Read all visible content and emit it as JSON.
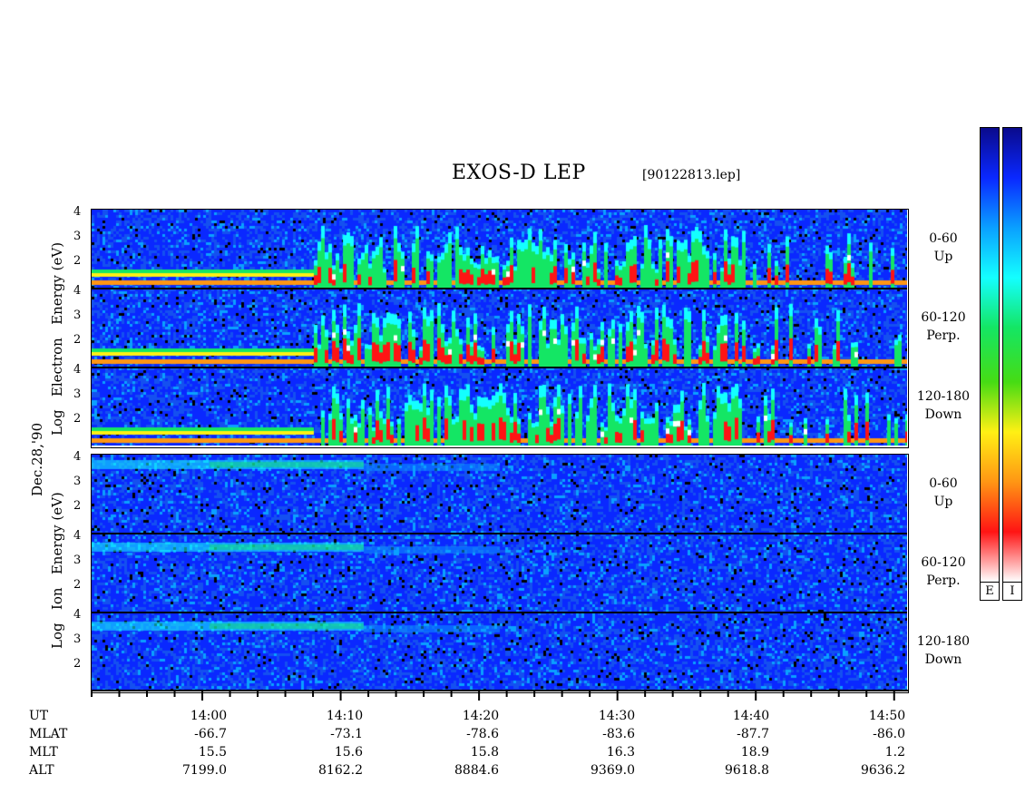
{
  "title": "EXOS-D LEP",
  "file": "[90122813.lep]",
  "date_label": "Dec.28,'90",
  "electron_axis": [
    "Log",
    "Electron",
    "Energy",
    "(eV)"
  ],
  "ion_axis": [
    "Log",
    "Ion",
    "Energy",
    "(eV)"
  ],
  "panels": [
    {
      "name": "electron-up",
      "pitch": "0-60",
      "dir": "Up",
      "species": "E",
      "fill": 1.0
    },
    {
      "name": "electron-perp",
      "pitch": "60-120",
      "dir": "Perp.",
      "species": "E",
      "fill": 1.0
    },
    {
      "name": "electron-down",
      "pitch": "120-180",
      "dir": "Down",
      "species": "E",
      "fill": 1.0
    },
    {
      "name": "ion-up",
      "pitch": "0-60",
      "dir": "Up",
      "species": "I",
      "fill": 0.0
    },
    {
      "name": "ion-perp",
      "pitch": "60-120",
      "dir": "Perp.",
      "species": "I",
      "fill": 0.0
    },
    {
      "name": "ion-down",
      "pitch": "120-180",
      "dir": "Down",
      "species": "I",
      "fill": 0.0
    }
  ],
  "energy_ticks": [
    "4",
    "3",
    "2"
  ],
  "colorbars": [
    {
      "label": "E"
    },
    {
      "label": "I"
    }
  ],
  "colors": {
    "bg": "#0a28c8",
    "bar": [
      "#0a0a8c",
      "#0a28ff",
      "#0aa0ff",
      "#14ffff",
      "#14e664",
      "#46dc14",
      "#fff014",
      "#ff9614",
      "#ff1414",
      "#ffffff"
    ]
  },
  "chart_data": {
    "type": "heatmap",
    "x_label": "UT",
    "x_ticks": [
      "14:00",
      "14:10",
      "14:20",
      "14:30",
      "14:40",
      "14:50"
    ],
    "x_range": [
      "13:52",
      "14:51"
    ],
    "y_label": "Log Energy (eV)",
    "y_range": [
      1,
      4.2
    ],
    "ephemeris": [
      {
        "label": "UT",
        "values": [
          "14:00",
          "14:10",
          "14:20",
          "14:30",
          "14:40",
          "14:50"
        ]
      },
      {
        "label": "MLAT",
        "values": [
          "-66.7",
          "-73.1",
          "-78.6",
          "-83.6",
          "-87.7",
          "-86.0"
        ]
      },
      {
        "label": "MLT",
        "values": [
          "15.5",
          "15.6",
          "15.8",
          "16.3",
          "18.9",
          "1.2"
        ]
      },
      {
        "label": "ALT",
        "values": [
          "7199.0",
          "8162.2",
          "8884.6",
          "9369.0",
          "9618.8",
          "9636.2"
        ]
      }
    ]
  }
}
